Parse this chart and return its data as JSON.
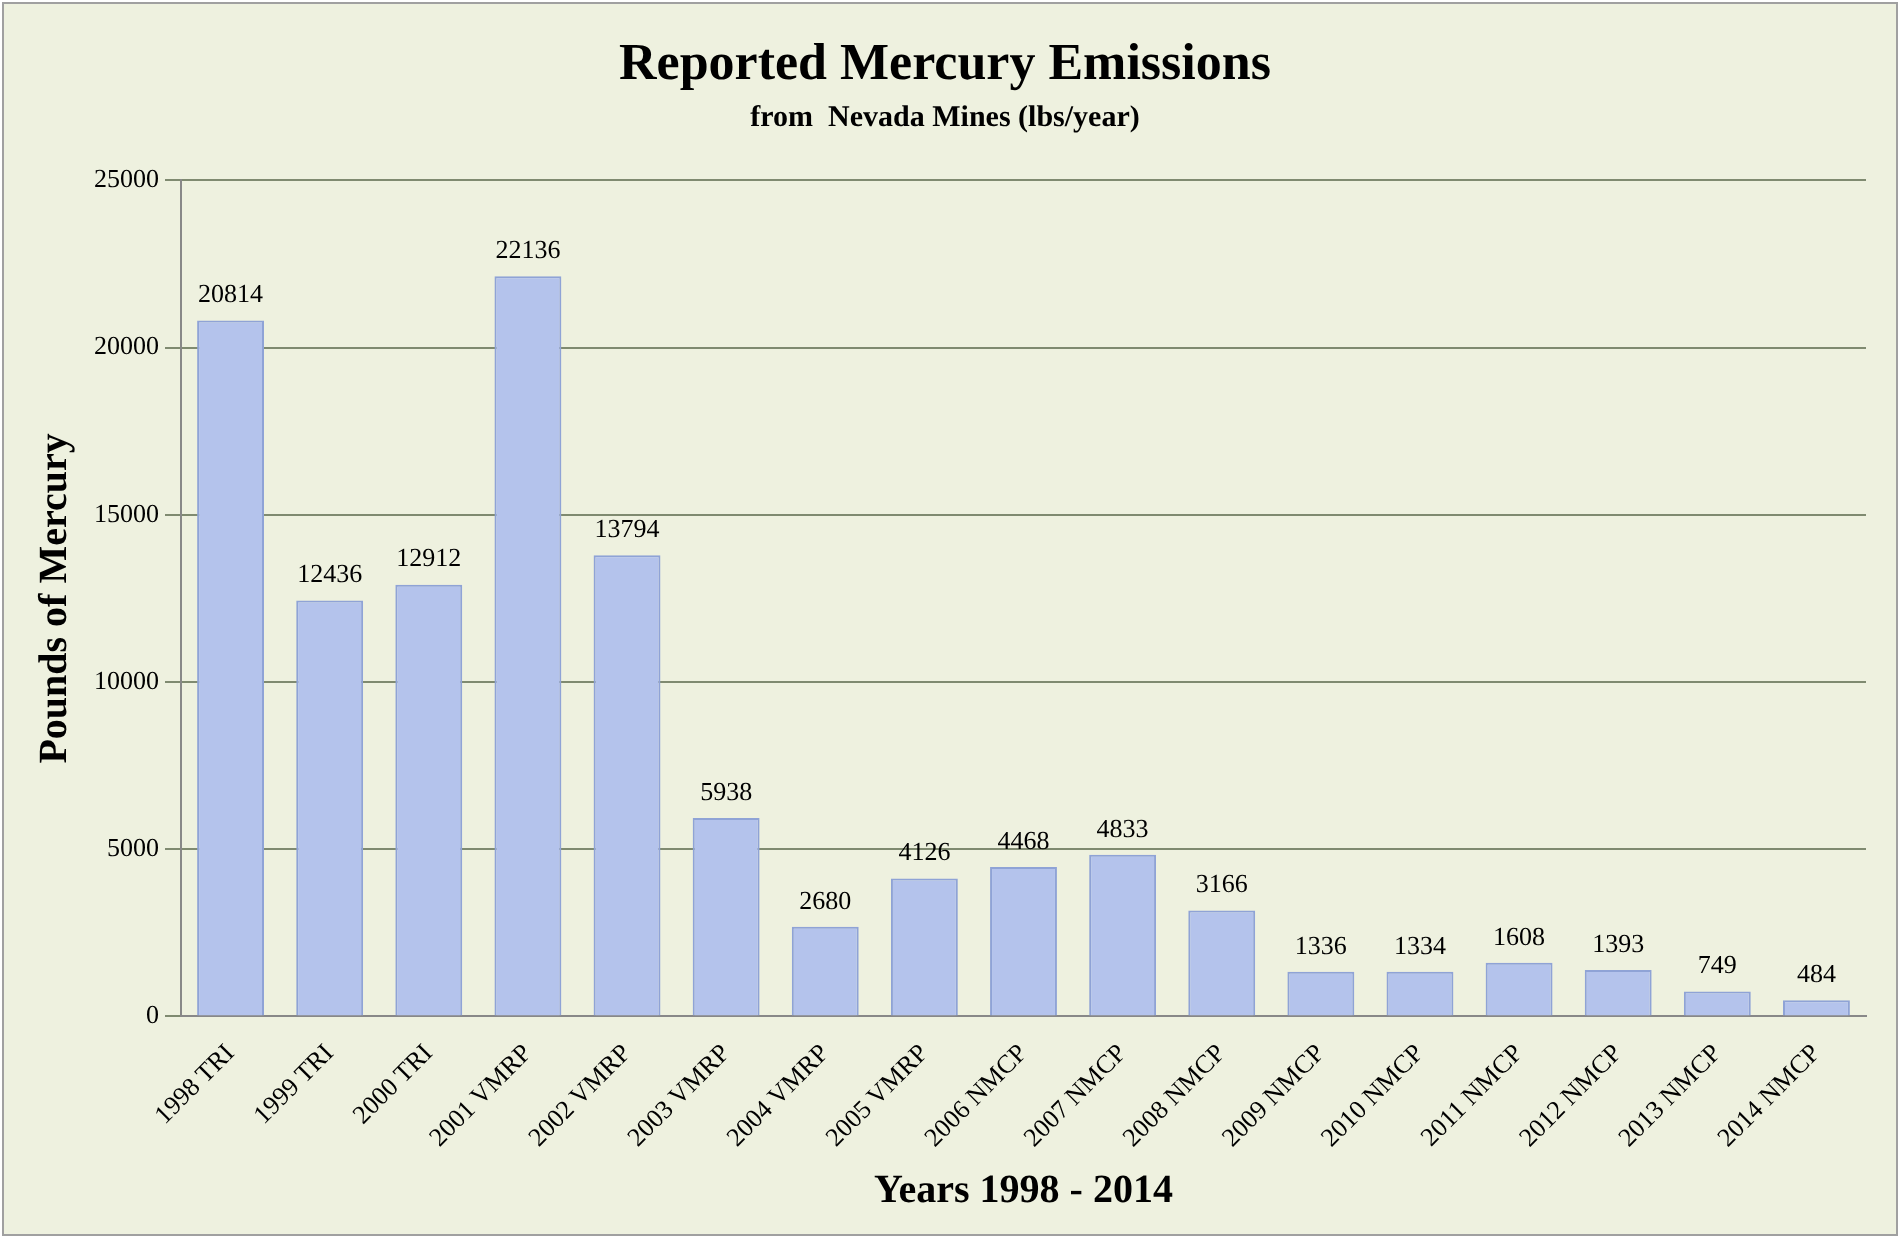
{
  "chart_data": {
    "type": "bar",
    "title": "Reported Mercury Emissions",
    "subtitle": "from  Nevada Mines (lbs/year)",
    "xlabel": "Years 1998 - 2014",
    "ylabel": "Pounds of Mercury",
    "categories": [
      "1998 TRI",
      "1999 TRI",
      "2000 TRI",
      "2001 VMRP",
      "2002 VMRP",
      "2003 VMRP",
      "2004 VMRP",
      "2005 VMRP",
      "2006 NMCP",
      "2007 NMCP",
      "2008 NMCP",
      "2009 NMCP",
      "2010 NMCP",
      "2011 NMCP",
      "2012 NMCP",
      "2013 NMCP",
      "2014 NMCP"
    ],
    "values": [
      20814,
      12436,
      12912,
      22136,
      13794,
      5938,
      2680,
      4126,
      4468,
      4833,
      3166,
      1336,
      1334,
      1608,
      1393,
      749,
      484
    ],
    "color": "#b4c3ec",
    "ylim": [
      0,
      25000
    ],
    "yticks": [
      0,
      5000,
      10000,
      15000,
      20000,
      25000
    ],
    "grid": "y",
    "data_labels": true
  }
}
